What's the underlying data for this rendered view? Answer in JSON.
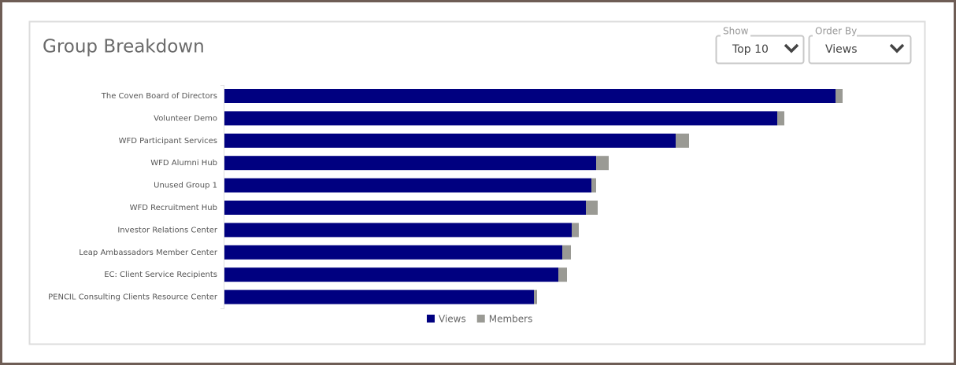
{
  "chart_data": {
    "type": "stacked-barh",
    "title": "Group Breakdown",
    "categories": [
      "The Coven Board of Directors",
      "Volunteer Demo",
      "WFD Participant Services",
      "WFD Alumni Hub",
      "Unused Group 1",
      "WFD Recruitment Hub",
      "Investor Relations Center",
      "Leap Ambassadors Member Center",
      "EC: Client Service Recipients",
      "PENCIL Consulting Clients Resource Center"
    ],
    "series": [
      {
        "name": "Views",
        "color": "#000080",
        "values": [
          776,
          702,
          573,
          472,
          466,
          459,
          441,
          429,
          424,
          393
        ]
      },
      {
        "name": "Members",
        "color": "#9a9a94",
        "values": [
          9,
          9,
          17,
          16,
          6,
          15,
          9,
          11,
          11,
          4
        ]
      }
    ],
    "xlim": [
      0,
      800
    ]
  },
  "controls": [
    {
      "label": "Show",
      "value": "Top 10"
    },
    {
      "label": "Order By",
      "value": "Views"
    }
  ]
}
